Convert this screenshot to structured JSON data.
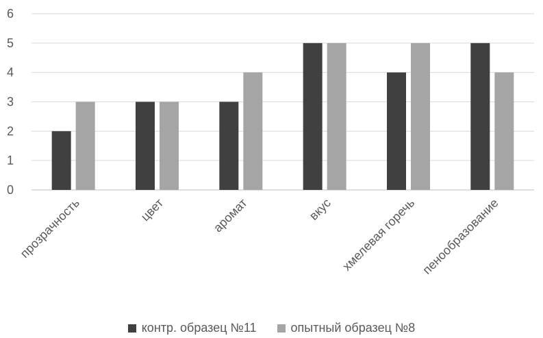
{
  "chart_data": {
    "type": "bar",
    "categories": [
      "прозрачность",
      "цвет",
      "аромат",
      "вкус",
      "хмелевая горечь",
      "пенообразование"
    ],
    "series": [
      {
        "name": "контр. образец №11",
        "values": [
          2,
          3,
          3,
          5,
          4,
          5
        ],
        "color": "#404040"
      },
      {
        "name": "опытный образец №8",
        "values": [
          3,
          3,
          4,
          5,
          5,
          4
        ],
        "color": "#a5a5a5"
      }
    ],
    "ylim": [
      0,
      6
    ],
    "yticks": [
      "0",
      "1",
      "2",
      "3",
      "4",
      "5",
      "6"
    ],
    "grid": true,
    "legend_position": "bottom"
  }
}
